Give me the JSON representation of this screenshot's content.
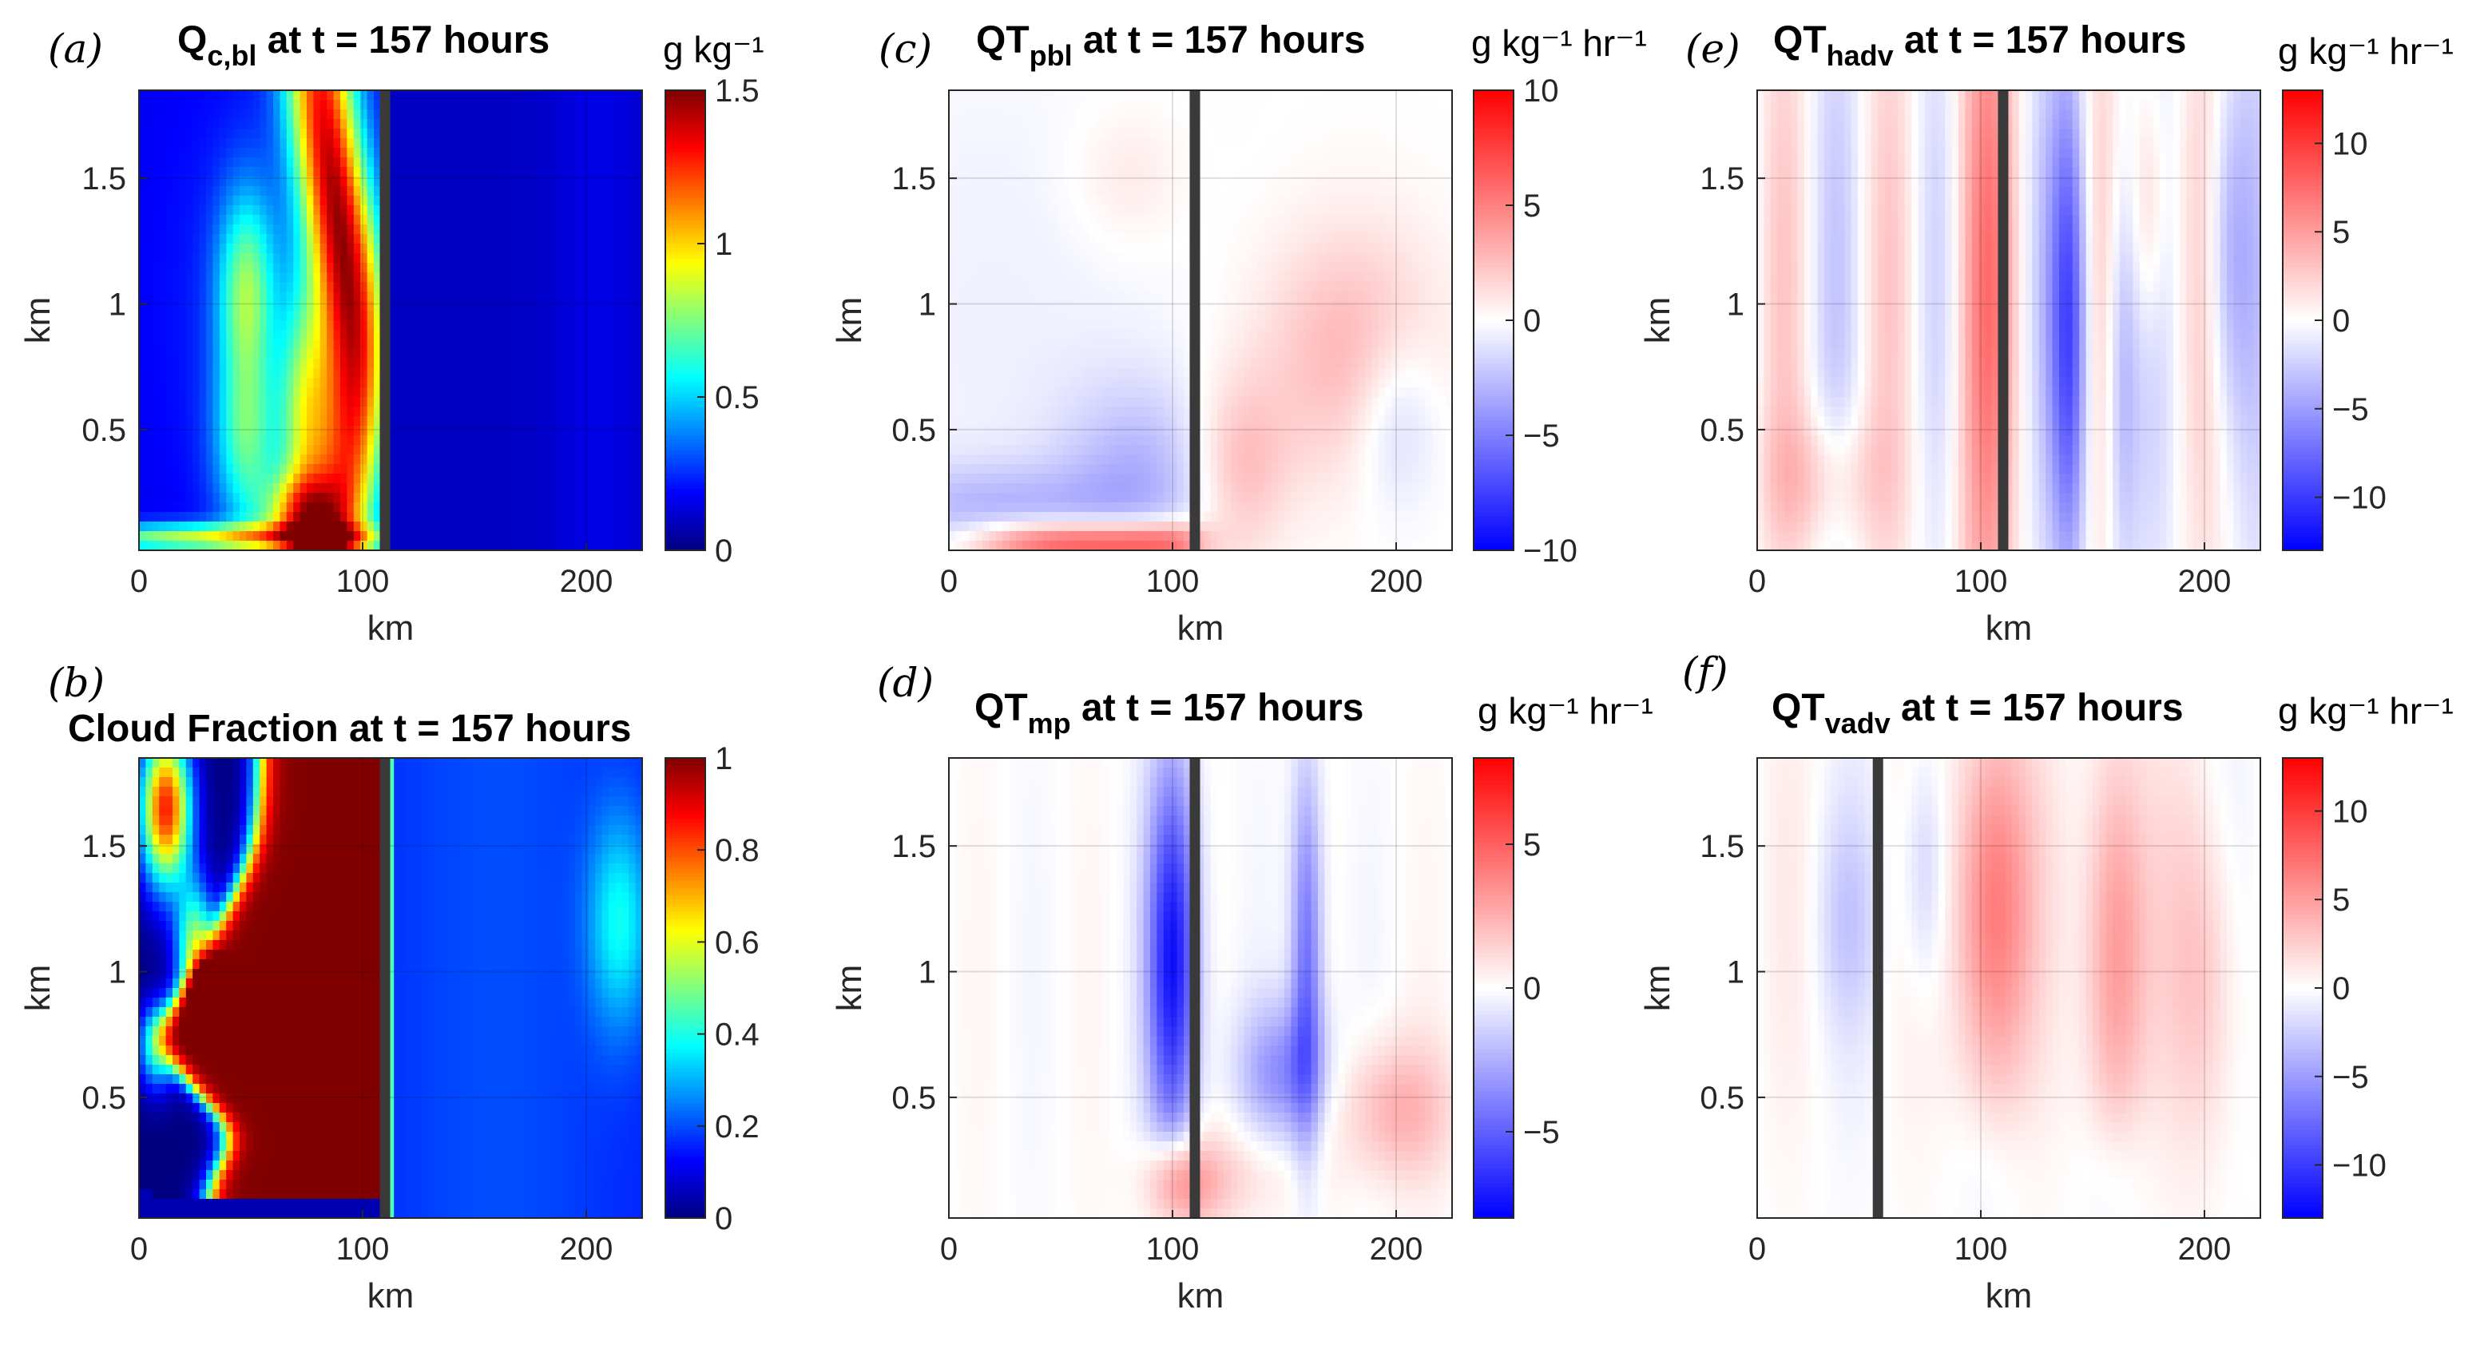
{
  "chart_data": [
    {
      "type": "heatmap",
      "id": "a",
      "panel_label": "(a)",
      "title_main": "Q",
      "title_sub": "c,bl",
      "title_rest": " at t = 157 hours",
      "xlabel": "km",
      "ylabel": "km",
      "xlim": [
        0,
        225
      ],
      "ylim": [
        0.02,
        1.85
      ],
      "xticks": [
        0,
        100,
        200
      ],
      "yticks": [
        0.5,
        1,
        1.5
      ],
      "colormap": "jet",
      "clim": [
        0,
        1.5
      ],
      "colorbar_ticks": [
        "0",
        "0.5",
        "1",
        "1.5"
      ],
      "colorbar_label": "g kg⁻¹",
      "vertical_line_x": 110
    },
    {
      "type": "heatmap",
      "id": "b",
      "panel_label": "(b)",
      "title_main": "Cloud Fraction at t = 157 hours",
      "title_sub": "",
      "title_rest": "",
      "xlabel": "km",
      "ylabel": "km",
      "xlim": [
        0,
        225
      ],
      "ylim": [
        0.02,
        1.85
      ],
      "xticks": [
        0,
        100,
        200
      ],
      "yticks": [
        0.5,
        1,
        1.5
      ],
      "colormap": "jet",
      "clim": [
        0,
        1
      ],
      "colorbar_ticks": [
        "0",
        "0.2",
        "0.4",
        "0.6",
        "0.8",
        "1"
      ],
      "colorbar_label": "",
      "vertical_line_x": 110
    },
    {
      "type": "heatmap",
      "id": "c",
      "panel_label": "(c)",
      "title_main": "QT",
      "title_sub": "pbl",
      "title_rest": " at t = 157 hours",
      "xlabel": "km",
      "ylabel": "km",
      "xlim": [
        0,
        225
      ],
      "ylim": [
        0.02,
        1.85
      ],
      "xticks": [
        0,
        100,
        200
      ],
      "yticks": [
        0.5,
        1,
        1.5
      ],
      "colormap": "blue-white-red",
      "clim": [
        -10,
        10
      ],
      "colorbar_ticks": [
        "−10",
        "−5",
        "0",
        "5",
        "10"
      ],
      "colorbar_label": "g kg⁻¹ hr⁻¹",
      "vertical_line_x": 110
    },
    {
      "type": "heatmap",
      "id": "d",
      "panel_label": "(d)",
      "title_main": "QT",
      "title_sub": "mp",
      "title_rest": " at t = 157 hours",
      "xlabel": "km",
      "ylabel": "km",
      "xlim": [
        0,
        225
      ],
      "ylim": [
        0.02,
        1.85
      ],
      "xticks": [
        0,
        100,
        200
      ],
      "yticks": [
        0.5,
        1,
        1.5
      ],
      "colormap": "blue-white-red",
      "clim": [
        -8,
        8
      ],
      "colorbar_ticks": [
        "−5",
        "0",
        "5"
      ],
      "colorbar_label": "g kg⁻¹ hr⁻¹",
      "vertical_line_x": 110
    },
    {
      "type": "heatmap",
      "id": "e",
      "panel_label": "(e)",
      "title_main": "QT",
      "title_sub": "hadv",
      "title_rest": " at t = 157 hours",
      "xlabel": "km",
      "ylabel": "km",
      "xlim": [
        0,
        225
      ],
      "ylim": [
        0.02,
        1.85
      ],
      "xticks": [
        0,
        100,
        200
      ],
      "yticks": [
        0.5,
        1,
        1.5
      ],
      "colormap": "blue-white-red",
      "clim": [
        -13,
        13
      ],
      "colorbar_ticks": [
        "−10",
        "−5",
        "0",
        "5",
        "10"
      ],
      "colorbar_label": "g kg⁻¹ hr⁻¹",
      "vertical_line_x": 110
    },
    {
      "type": "heatmap",
      "id": "f",
      "panel_label": "(f)",
      "title_main": "QT",
      "title_sub": "vadv",
      "title_rest": " at t = 157 hours",
      "xlabel": "km",
      "ylabel": "km",
      "xlim": [
        0,
        225
      ],
      "ylim": [
        0.02,
        1.85
      ],
      "xticks": [
        0,
        100,
        200
      ],
      "yticks": [
        0.5,
        1,
        1.5
      ],
      "colormap": "blue-white-red",
      "clim": [
        -13,
        13
      ],
      "colorbar_ticks": [
        "−10",
        "−5",
        "0",
        "5",
        "10"
      ],
      "colorbar_label": "g kg⁻¹ hr⁻¹",
      "vertical_line_x": 54
    }
  ]
}
